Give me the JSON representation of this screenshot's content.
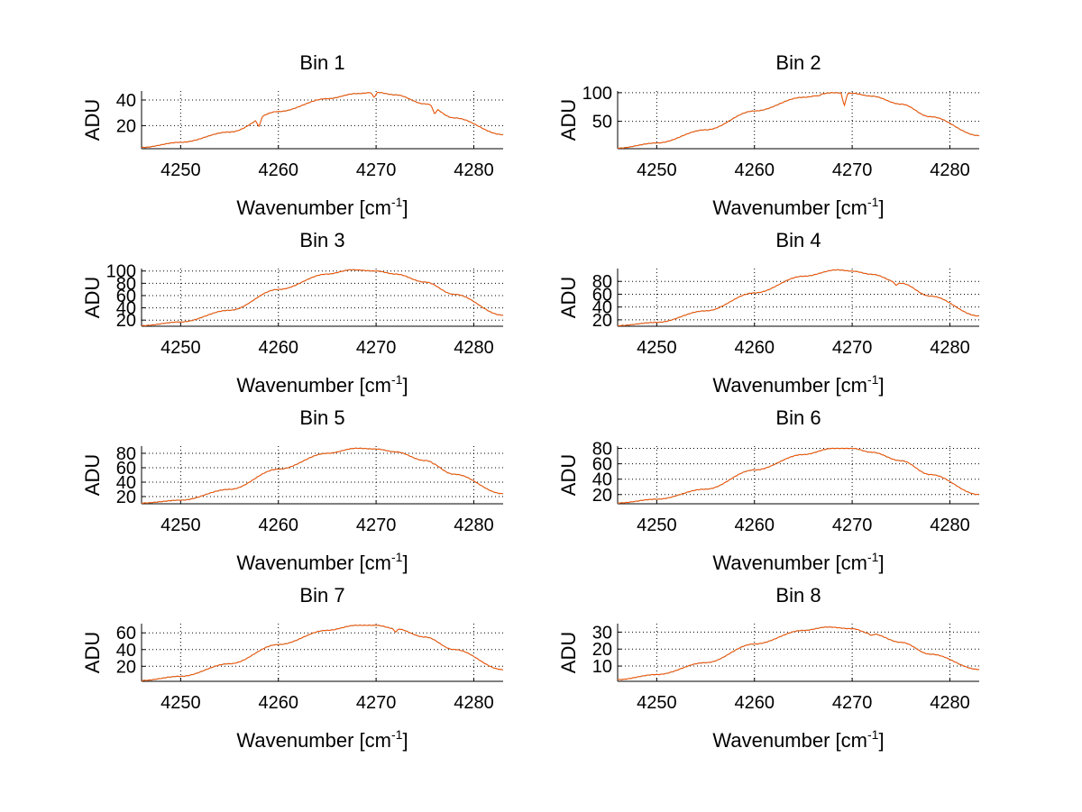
{
  "figure": {
    "xlabel_main": "Wavenumber [cm",
    "xlabel_sup": "-1",
    "xlabel_close": "]",
    "ylabel": "ADU"
  },
  "style": {
    "line_color_primary": "#ff4d00",
    "line_color_secondary": "#4dbb99",
    "grid_color": "#000000",
    "background": "#ffffff"
  },
  "chart_data": [
    {
      "type": "line",
      "title": "Bin 1",
      "xlabel": "Wavenumber [cm-1]",
      "ylabel": "ADU",
      "xlim": [
        4246,
        4283
      ],
      "ylim": [
        2,
        47
      ],
      "xticks": [
        4250,
        4260,
        4270,
        4280
      ],
      "yticks": [
        20,
        40
      ],
      "grid": true,
      "peak_x": 4270,
      "peak_y": 46,
      "x": [
        4246,
        4250,
        4255,
        4260,
        4265,
        4268,
        4270,
        4272,
        4275,
        4278,
        4283
      ],
      "y": [
        3,
        7,
        15,
        31,
        41,
        45,
        46,
        44,
        37,
        26,
        13
      ],
      "dips": [
        [
          4258,
          19
        ],
        [
          4269.8,
          42
        ],
        [
          4276,
          29
        ]
      ]
    },
    {
      "type": "line",
      "title": "Bin 2",
      "xlabel": "Wavenumber [cm-1]",
      "ylabel": "ADU",
      "xlim": [
        4246,
        4283
      ],
      "ylim": [
        2,
        103
      ],
      "xticks": [
        4250,
        4260,
        4270,
        4280
      ],
      "yticks": [
        50,
        100
      ],
      "grid": true,
      "peak_x": 4268,
      "peak_y": 100,
      "x": [
        4246,
        4250,
        4255,
        4260,
        4265,
        4268,
        4270,
        4272,
        4275,
        4278,
        4283
      ],
      "y": [
        3,
        12,
        35,
        68,
        92,
        100,
        99,
        94,
        80,
        58,
        25
      ],
      "dips": [
        [
          4269.2,
          77
        ],
        [
          4266.5,
          94
        ]
      ]
    },
    {
      "type": "line",
      "title": "Bin 3",
      "xlabel": "Wavenumber [cm-1]",
      "ylabel": "ADU",
      "xlim": [
        4246,
        4283
      ],
      "ylim": [
        10,
        104
      ],
      "xticks": [
        4250,
        4260,
        4270,
        4280
      ],
      "yticks": [
        20,
        40,
        60,
        80,
        100
      ],
      "grid": true,
      "peak_x": 4267.5,
      "peak_y": 102,
      "x": [
        4246,
        4250,
        4255,
        4260,
        4265,
        4267.5,
        4270,
        4272,
        4275,
        4278,
        4283
      ],
      "y": [
        11,
        17,
        36,
        70,
        95,
        102,
        100,
        95,
        82,
        62,
        28
      ],
      "dips": []
    },
    {
      "type": "line",
      "title": "Bin 4",
      "xlabel": "Wavenumber [cm-1]",
      "ylabel": "ADU",
      "xlim": [
        4246,
        4283
      ],
      "ylim": [
        10,
        100
      ],
      "xticks": [
        4250,
        4260,
        4270,
        4280
      ],
      "yticks": [
        20,
        40,
        60,
        80
      ],
      "grid": true,
      "peak_x": 4268.5,
      "peak_y": 98,
      "x": [
        4246,
        4250,
        4255,
        4260,
        4265,
        4268.5,
        4270,
        4272,
        4275,
        4278,
        4283
      ],
      "y": [
        11,
        16,
        34,
        62,
        88,
        98,
        96,
        91,
        77,
        57,
        26
      ],
      "dips": [
        [
          4274.5,
          74
        ]
      ]
    },
    {
      "type": "line",
      "title": "Bin 5",
      "xlabel": "Wavenumber [cm-1]",
      "ylabel": "ADU",
      "xlim": [
        4246,
        4283
      ],
      "ylim": [
        10,
        90
      ],
      "xticks": [
        4250,
        4260,
        4270,
        4280
      ],
      "yticks": [
        20,
        40,
        60,
        80
      ],
      "grid": true,
      "peak_x": 4268,
      "peak_y": 87,
      "x": [
        4246,
        4250,
        4255,
        4260,
        4265,
        4268,
        4270,
        4272,
        4275,
        4278,
        4283
      ],
      "y": [
        11,
        15,
        30,
        58,
        80,
        87,
        86,
        82,
        70,
        51,
        24
      ],
      "dips": [
        [
          4276,
          65
        ]
      ]
    },
    {
      "type": "line",
      "title": "Bin 6",
      "xlabel": "Wavenumber [cm-1]",
      "ylabel": "ADU",
      "xlim": [
        4246,
        4283
      ],
      "ylim": [
        8,
        83
      ],
      "xticks": [
        4250,
        4260,
        4270,
        4280
      ],
      "yticks": [
        20,
        40,
        60,
        80
      ],
      "grid": true,
      "peak_x": 4268,
      "peak_y": 80,
      "x": [
        4246,
        4250,
        4255,
        4260,
        4265,
        4268,
        4270,
        4272,
        4275,
        4278,
        4283
      ],
      "y": [
        9,
        14,
        27,
        52,
        72,
        80,
        80,
        75,
        64,
        46,
        20
      ],
      "dips": []
    },
    {
      "type": "line",
      "title": "Bin 7",
      "xlabel": "Wavenumber [cm-1]",
      "ylabel": "ADU",
      "xlim": [
        4246,
        4283
      ],
      "ylim": [
        2,
        71
      ],
      "xticks": [
        4250,
        4260,
        4270,
        4280
      ],
      "yticks": [
        20,
        40,
        60
      ],
      "grid": true,
      "peak_x": 4268,
      "peak_y": 69,
      "x": [
        4246,
        4250,
        4255,
        4260,
        4265,
        4268,
        4270,
        4272,
        4275,
        4278,
        4283
      ],
      "y": [
        3,
        8,
        23,
        46,
        63,
        69,
        69,
        65,
        55,
        40,
        16
      ],
      "dips": [
        [
          4272,
          61
        ]
      ]
    },
    {
      "type": "line",
      "title": "Bin 8",
      "xlabel": "Wavenumber [cm-1]",
      "ylabel": "ADU",
      "xlim": [
        4246,
        4283
      ],
      "ylim": [
        1,
        35
      ],
      "xticks": [
        4250,
        4260,
        4270,
        4280
      ],
      "yticks": [
        10,
        20,
        30
      ],
      "grid": true,
      "peak_x": 4267.5,
      "peak_y": 33,
      "x": [
        4246,
        4250,
        4255,
        4260,
        4265,
        4267.5,
        4270,
        4272,
        4275,
        4278,
        4283
      ],
      "y": [
        2,
        5,
        12,
        23,
        31,
        33,
        32,
        29,
        24,
        17,
        8
      ],
      "dips": [
        [
          4261.5,
          25
        ],
        [
          4272,
          28
        ]
      ]
    }
  ]
}
